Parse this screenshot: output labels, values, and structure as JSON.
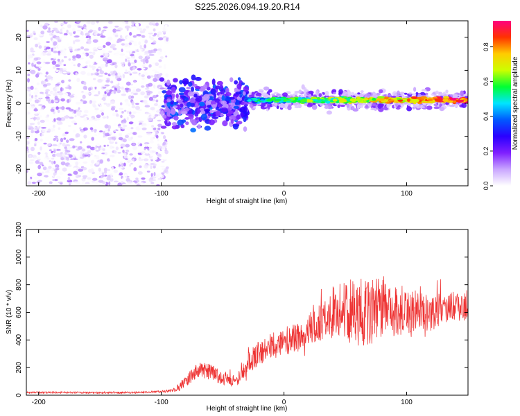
{
  "title": "S225.2026.094.19.20.R14",
  "chart_data": [
    {
      "type": "heatmap",
      "xlabel": "Height of straight line (km)",
      "ylabel": "Frequency (Hz)",
      "xlim": [
        -210,
        150
      ],
      "ylim": [
        -25,
        25
      ],
      "xticks": [
        -200,
        -100,
        0,
        100
      ],
      "yticks": [
        -20,
        -10,
        0,
        10,
        20
      ],
      "colorbar": {
        "label": "Normalized spectral amplitude",
        "range": [
          0.0,
          0.95
        ],
        "ticks": [
          0.0,
          0.2,
          0.4,
          0.6,
          0.8
        ],
        "colormap": [
          "#ffffff",
          "#c9a6ff",
          "#7f1fff",
          "#2a00ff",
          "#0059ff",
          "#00e5ff",
          "#00ff33",
          "#ccff00",
          "#ffcc00",
          "#ff3300",
          "#ff007f"
        ]
      },
      "regions": [
        {
          "name": "noise",
          "x_range": [
            -210,
            -95
          ],
          "freq_range": [
            -25,
            25
          ],
          "amplitude_range": [
            0.0,
            0.15
          ]
        },
        {
          "name": "onset",
          "x_range": [
            -100,
            -30
          ],
          "freq_center": 0,
          "freq_spread": 8,
          "amplitude_range": [
            0.1,
            0.4
          ]
        },
        {
          "name": "ridge",
          "x_range": [
            -30,
            150
          ],
          "freq_center": 1,
          "freq_spread": 3,
          "amplitude_peak": 0.95
        }
      ]
    },
    {
      "type": "line",
      "xlabel": "Height of straight line (km)",
      "ylabel": "SNR (10 * v/v)",
      "xlim": [
        -210,
        150
      ],
      "ylim": [
        0,
        1200
      ],
      "xticks": [
        -200,
        -100,
        0,
        100
      ],
      "yticks": [
        0,
        200,
        400,
        600,
        800,
        1000,
        1200
      ],
      "color": "#ee3333",
      "series": [
        {
          "name": "SNR",
          "x": [
            -210,
            -180,
            -150,
            -120,
            -100,
            -90,
            -80,
            -70,
            -60,
            -50,
            -40,
            -35,
            -30,
            -20,
            -10,
            0,
            10,
            20,
            30,
            40,
            50,
            60,
            70,
            80,
            90,
            100,
            110,
            120,
            130,
            140,
            150
          ],
          "values": [
            20,
            20,
            18,
            20,
            25,
            35,
            100,
            180,
            170,
            120,
            100,
            150,
            230,
            310,
            360,
            390,
            410,
            480,
            530,
            600,
            620,
            600,
            590,
            640,
            610,
            620,
            600,
            590,
            640,
            640,
            650
          ],
          "noise_amplitude": [
            8,
            8,
            8,
            8,
            10,
            15,
            60,
            80,
            80,
            60,
            60,
            80,
            100,
            120,
            130,
            140,
            140,
            150,
            200,
            250,
            300,
            330,
            330,
            280,
            260,
            230,
            200,
            170,
            150,
            150,
            150
          ]
        }
      ]
    }
  ]
}
